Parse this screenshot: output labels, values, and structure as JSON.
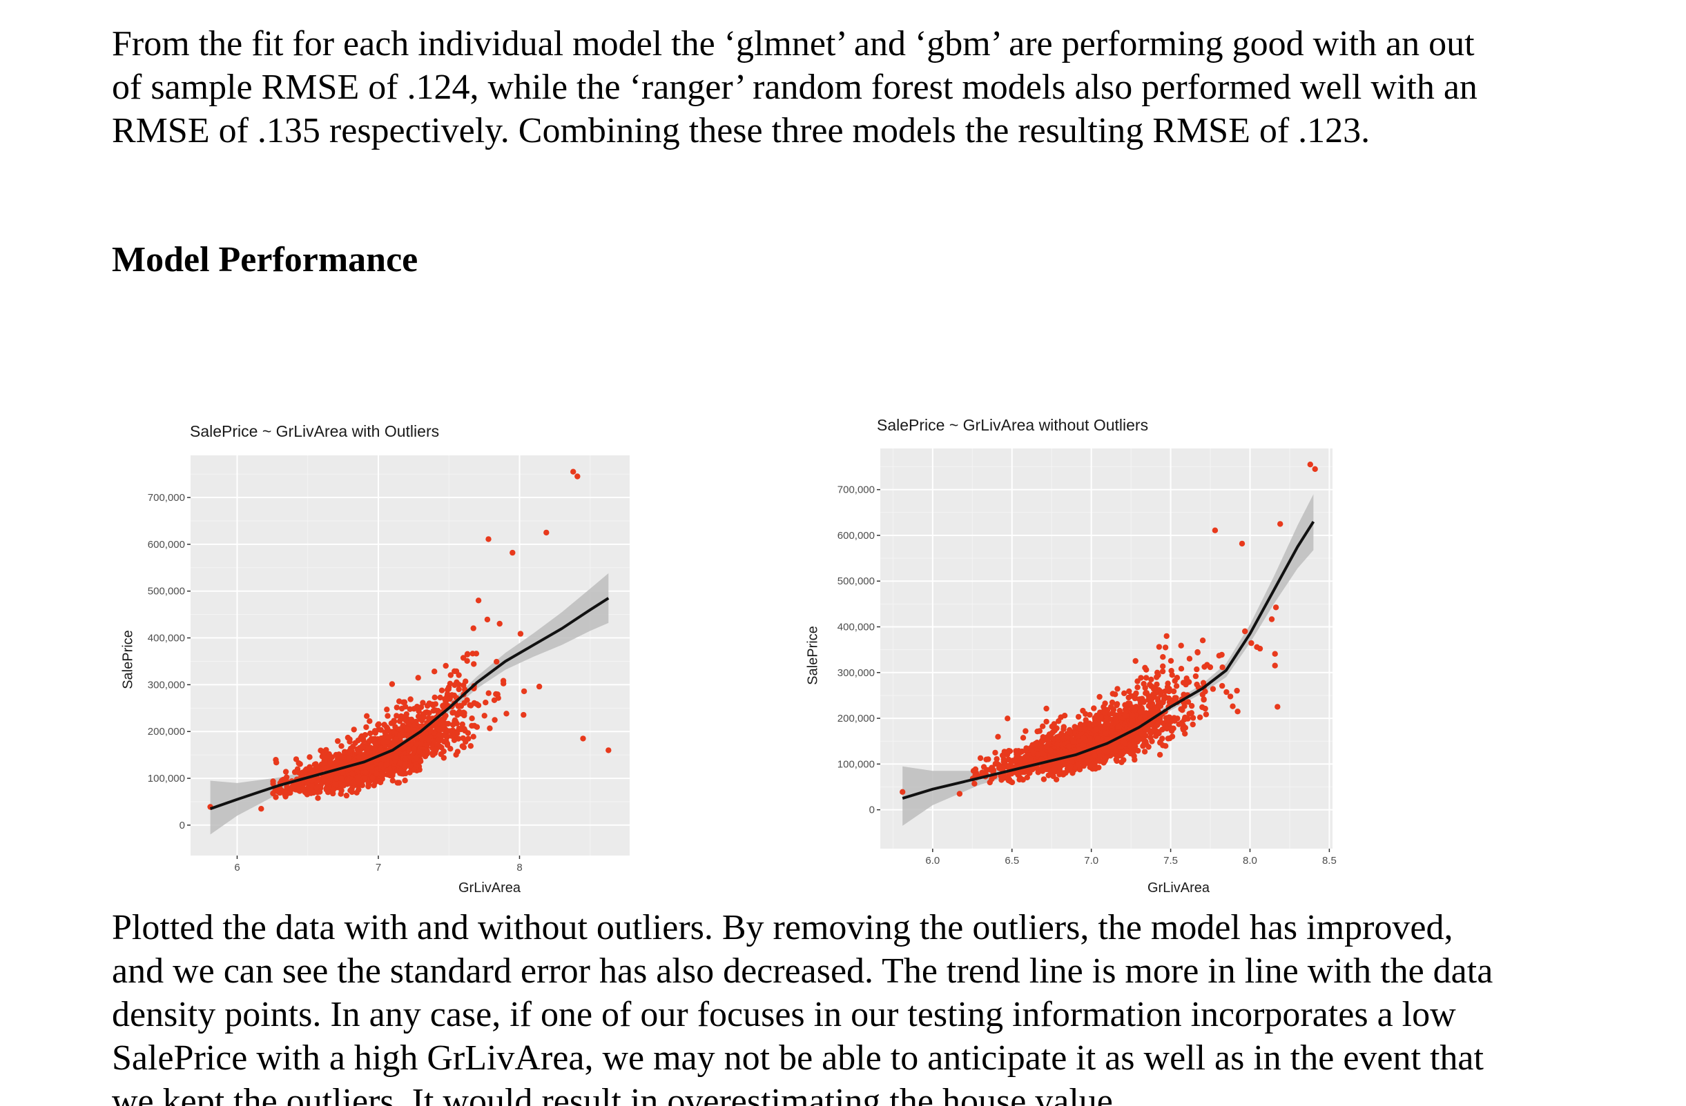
{
  "text": {
    "para_top_lines": [
      "From the fit for each individual model the ‘glmnet’ and ‘gbm’ are performing good with an out",
      "of sample RMSE of .124, while the ‘ranger’ random forest models also performed well with an",
      "RMSE of .135 respectively. Combining these three models the resulting RMSE of .123."
    ],
    "heading": "Model Performance",
    "para_bottom_lines": [
      "Plotted the data with and without outliers. By removing the outliers, the model has improved,",
      "and we can see the standard error has also decreased. The trend line is more in line with the data",
      "density points. In any case, if one of our focuses in our testing information incorporates a low",
      "SalePrice with a high GrLivArea, we may not be able to anticipate it as well as in the event that",
      "we kept the outliers. It would result in overestimating the house value."
    ]
  },
  "colors": {
    "panel": "#ebebeb",
    "grid_major": "#ffffff",
    "point": "#e8391c",
    "smooth": "#111111",
    "band": "#bdbdbd"
  },
  "chart_data": [
    {
      "type": "scatter",
      "title": "SalePrice ~ GrLivArea with Outliers",
      "xlabel": "GrLivArea",
      "ylabel": "SalePrice",
      "xlim": [
        5.67,
        8.78
      ],
      "ylim": [
        -65000,
        790000
      ],
      "x_ticks": [
        6,
        7,
        8
      ],
      "x_tick_labels": [
        "6",
        "7",
        "8"
      ],
      "y_ticks": [
        0,
        100000,
        200000,
        300000,
        400000,
        500000,
        600000,
        700000
      ],
      "y_tick_labels": [
        "0",
        "100,000",
        "200,000",
        "300,000",
        "400,000",
        "500,000",
        "600,000",
        "700,000"
      ],
      "grid": true,
      "legend": "none",
      "series": [
        {
          "kind": "points",
          "notable_points": [
            [
              8.38,
              755000
            ],
            [
              8.41,
              745000
            ],
            [
              8.45,
              185000
            ],
            [
              8.63,
              160000
            ],
            [
              8.19,
              625000
            ],
            [
              7.78,
              611000
            ],
            [
              7.95,
              582000
            ],
            [
              5.81,
              39000
            ],
            [
              6.17,
              35000
            ]
          ],
          "bulk": {
            "x_range": [
              6.25,
              8.2
            ],
            "center_curve": [
              [
                6.3,
                80000
              ],
              [
                6.6,
                105000
              ],
              [
                7.0,
                140000
              ],
              [
                7.3,
                185000
              ],
              [
                7.6,
                245000
              ],
              [
                7.9,
                300000
              ],
              [
                8.1,
                330000
              ]
            ],
            "count": 1460
          }
        },
        {
          "kind": "smooth",
          "x": [
            5.81,
            6.0,
            6.3,
            6.6,
            6.9,
            7.1,
            7.3,
            7.5,
            7.7,
            7.9,
            8.1,
            8.3,
            8.5,
            8.63
          ],
          "y": [
            35000,
            55000,
            85000,
            110000,
            135000,
            160000,
            200000,
            250000,
            305000,
            350000,
            385000,
            420000,
            460000,
            485000
          ],
          "se_lower": [
            -20000,
            20000,
            68000,
            98000,
            127000,
            152000,
            192000,
            240000,
            292000,
            332000,
            360000,
            385000,
            415000,
            432000
          ],
          "se_upper": [
            95000,
            90000,
            102000,
            122000,
            143000,
            168000,
            208000,
            260000,
            318000,
            368000,
            410000,
            455000,
            505000,
            538000
          ]
        }
      ]
    },
    {
      "type": "scatter",
      "title": "SalePrice ~ GrLivArea without Outliers",
      "xlabel": "GrLivArea",
      "ylabel": "SalePrice",
      "xlim": [
        5.67,
        8.52
      ],
      "ylim": [
        -85000,
        790000
      ],
      "x_ticks": [
        6.0,
        6.5,
        7.0,
        7.5,
        8.0,
        8.5
      ],
      "x_tick_labels": [
        "6.0",
        "6.5",
        "7.0",
        "7.5",
        "8.0",
        "8.5"
      ],
      "y_ticks": [
        0,
        100000,
        200000,
        300000,
        400000,
        500000,
        600000,
        700000
      ],
      "y_tick_labels": [
        "0",
        "100,000",
        "200,000",
        "300,000",
        "400,000",
        "500,000",
        "600,000",
        "700,000"
      ],
      "grid": true,
      "legend": "none",
      "series": [
        {
          "kind": "points",
          "notable_points": [
            [
              8.38,
              755000
            ],
            [
              8.41,
              745000
            ],
            [
              8.19,
              625000
            ],
            [
              7.78,
              611000
            ],
            [
              7.95,
              582000
            ],
            [
              5.81,
              39000
            ],
            [
              6.17,
              35000
            ]
          ],
          "bulk": {
            "x_range": [
              6.25,
              8.2
            ],
            "center_curve": [
              [
                6.3,
                80000
              ],
              [
                6.6,
                105000
              ],
              [
                7.0,
                140000
              ],
              [
                7.3,
                185000
              ],
              [
                7.6,
                245000
              ],
              [
                7.9,
                300000
              ],
              [
                8.1,
                330000
              ]
            ],
            "count": 1458
          }
        },
        {
          "kind": "smooth",
          "x": [
            5.81,
            6.0,
            6.3,
            6.6,
            6.9,
            7.1,
            7.3,
            7.5,
            7.7,
            7.85,
            8.0,
            8.15,
            8.3,
            8.4
          ],
          "y": [
            25000,
            45000,
            70000,
            95000,
            120000,
            145000,
            180000,
            225000,
            265000,
            305000,
            385000,
            480000,
            575000,
            630000
          ],
          "se_lower": [
            -35000,
            10000,
            55000,
            86000,
            113000,
            138000,
            173000,
            217000,
            255000,
            290000,
            365000,
            450000,
            528000,
            568000
          ],
          "se_upper": [
            95000,
            85000,
            85000,
            105000,
            127000,
            152000,
            187000,
            233000,
            275000,
            320000,
            405000,
            510000,
            622000,
            690000
          ]
        }
      ]
    }
  ]
}
